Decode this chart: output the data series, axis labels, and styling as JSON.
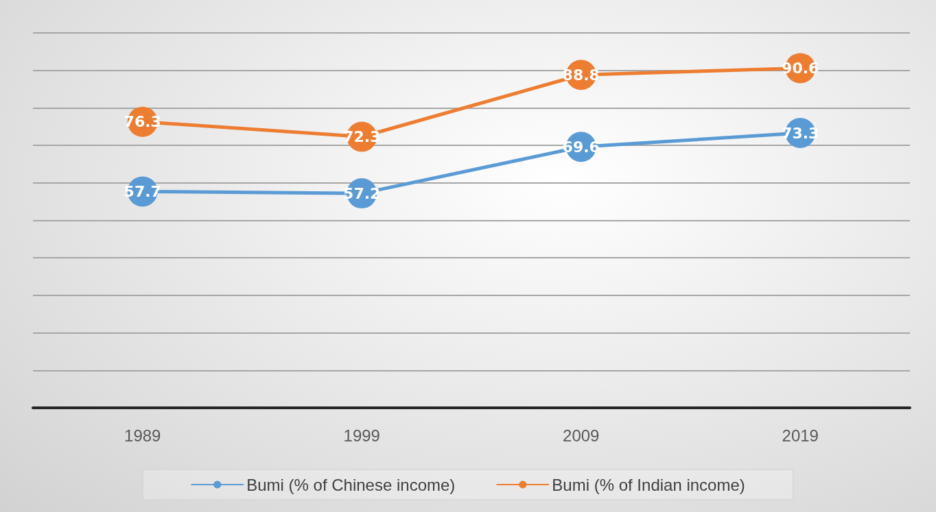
{
  "chart_data": {
    "type": "line",
    "categories": [
      "1989",
      "1999",
      "2009",
      "2019"
    ],
    "series": [
      {
        "name": "Bumi (% of Chinese income)",
        "color": "#5b9bd5",
        "values": [
          57.7,
          57.2,
          69.6,
          73.3
        ]
      },
      {
        "name": "Bumi (% of Indian income)",
        "color": "#ed7d31",
        "values": [
          76.3,
          72.3,
          88.8,
          90.6
        ]
      }
    ],
    "ylim": [
      0,
      100
    ],
    "yticks": [
      0,
      10,
      20,
      30,
      40,
      50,
      60,
      70,
      80,
      90,
      100
    ],
    "tick_labels": "x",
    "grid": "y",
    "legend": "bottom",
    "marker": "circle",
    "line_style": "solid",
    "data_labels": true
  }
}
